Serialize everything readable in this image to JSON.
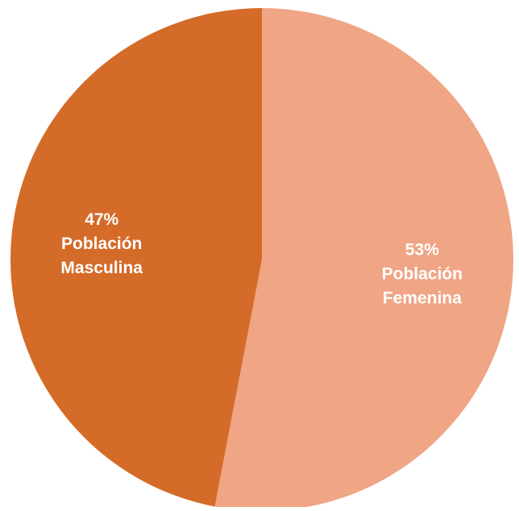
{
  "chart_data": {
    "type": "pie",
    "title": "",
    "start_angle_deg": 0,
    "direction": "clockwise",
    "slices": [
      {
        "category": "Población Femenina",
        "value": 53,
        "color": "#f0a585",
        "label_lines": [
          "53%",
          "Población",
          "Femenina"
        ]
      },
      {
        "category": "Población Masculina",
        "value": 47,
        "color": "#d46b29",
        "label_lines": [
          "47%",
          "Población",
          "Masculina"
        ]
      }
    ],
    "legend": "none"
  }
}
